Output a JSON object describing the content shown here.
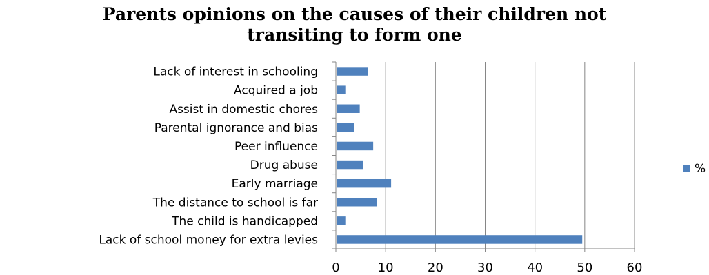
{
  "chart_data": {
    "type": "bar",
    "orientation": "horizontal",
    "title_lines": [
      "Parents opinions on the causes of their children not",
      "transiting to form one"
    ],
    "categories": [
      "Lack of interest in schooling",
      "Acquired a job",
      "Assist in domestic chores",
      "Parental ignorance and bias",
      "Peer influence",
      "Drug abuse",
      "Early marriage",
      "The distance to school is far",
      "The child is handicapped",
      "Lack of school money for extra levies"
    ],
    "series": [
      {
        "name": "%",
        "values": [
          6.5,
          1.9,
          4.8,
          3.7,
          7.5,
          5.5,
          11.1,
          8.3,
          1.9,
          49.5
        ]
      }
    ],
    "xlim": [
      0,
      60
    ],
    "xticks": [
      0,
      10,
      20,
      30,
      40,
      50,
      60
    ],
    "grid": "vertical major",
    "legend_position": "right",
    "colors": {
      "bar": "#4f81bd",
      "grid": "#868686",
      "axis": "#868686"
    }
  }
}
